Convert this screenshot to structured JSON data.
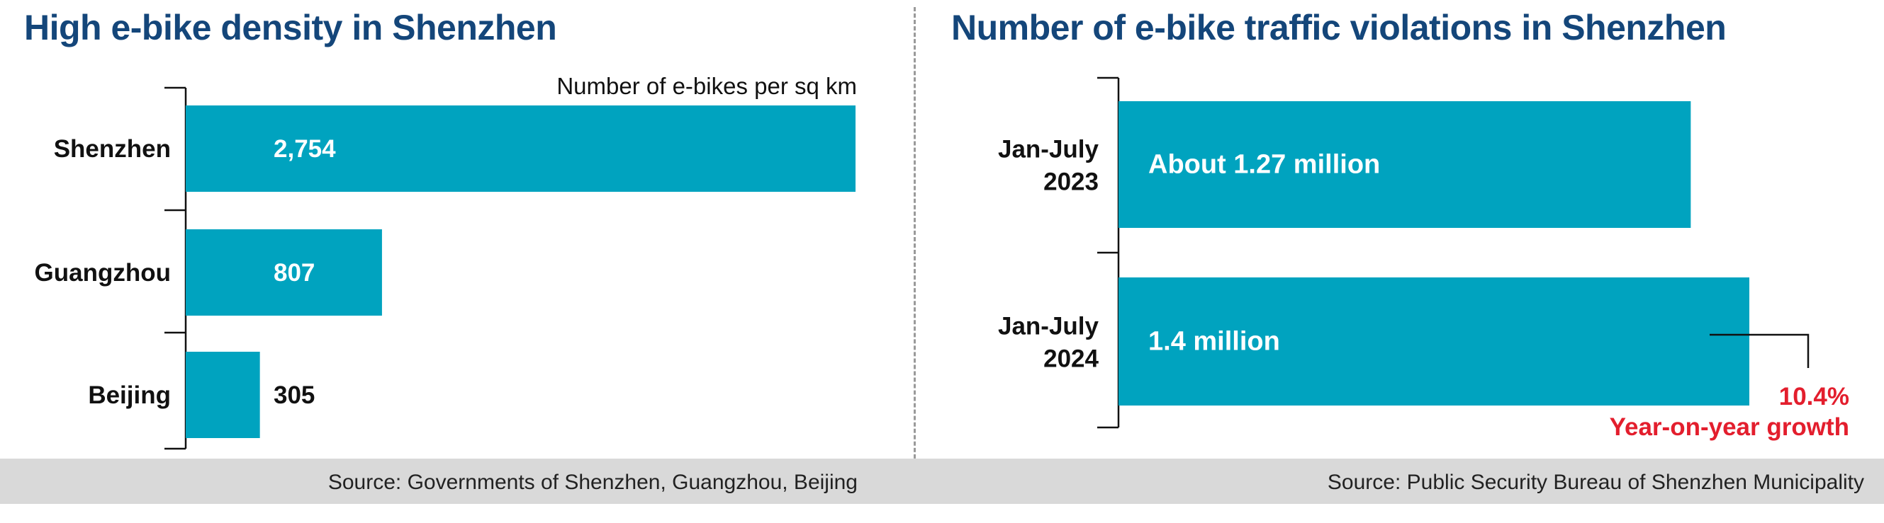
{
  "chart_data": [
    {
      "type": "bar",
      "orientation": "horizontal",
      "title": "High e-bike density in Shenzhen",
      "subtitle": "Number of e-bikes per sq km",
      "categories": [
        "Shenzhen",
        "Guangzhou",
        "Beijing"
      ],
      "values": [
        2754,
        807,
        305
      ],
      "value_labels": [
        "2,754",
        "807",
        "305"
      ],
      "xlim": [
        0,
        2754
      ],
      "grid": false,
      "bar_color": "#00a3bf",
      "source": "Source: Governments of Shenzhen, Guangzhou, Beijing"
    },
    {
      "type": "bar",
      "orientation": "horizontal",
      "title": "Number of e-bike traffic violations in Shenzhen",
      "categories": [
        [
          "Jan-July",
          "2023"
        ],
        [
          "Jan-July",
          "2024"
        ]
      ],
      "values": [
        1.27,
        1.4
      ],
      "value_labels": [
        "About 1.27 million",
        "1.4 million"
      ],
      "xlim": [
        0,
        1.4
      ],
      "grid": false,
      "bar_color": "#00a3bf",
      "annotation": {
        "value": "10.4%",
        "text": "Year-on-year growth",
        "color": "#e31e2d"
      },
      "source": "Source: Public Security Bureau of Shenzhen Municipality"
    }
  ],
  "colors": {
    "title": "#14467a",
    "bar": "#00a3bf",
    "accent_red": "#e31e2d",
    "footer_bg": "#d9d9d9"
  }
}
